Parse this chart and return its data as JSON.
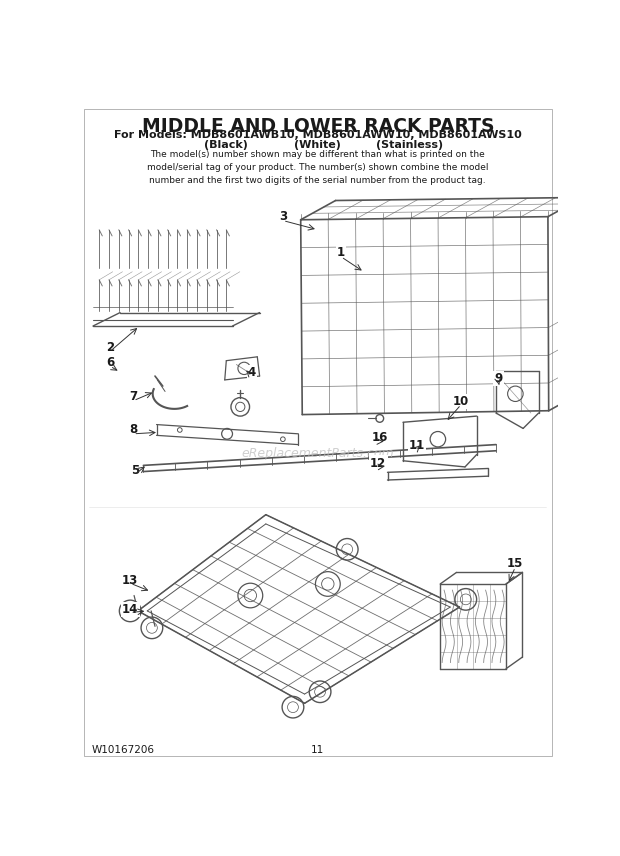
{
  "title": "MIDDLE AND LOWER RACK PARTS",
  "subtitle1": "For Models: MDB8601AWB10, MDB8601AWW10, MDB8601AWS10",
  "subtitle2_black": "(Black)",
  "subtitle2_white": "(White)",
  "subtitle2_stainless": "(Stainless)",
  "disclaimer": "The model(s) number shown may be different than what is printed on the\nmodel/serial tag of your product. The number(s) shown combine the model\nnumber and the first two digits of the serial number from the product tag.",
  "watermark": "eReplacementParts.com",
  "part_number": "W10167206",
  "page_number": "11",
  "bg_color": "#ffffff",
  "fg_color": "#1a1a1a",
  "wire_color": "#555555",
  "figsize": [
    6.2,
    8.56
  ],
  "dpi": 100
}
